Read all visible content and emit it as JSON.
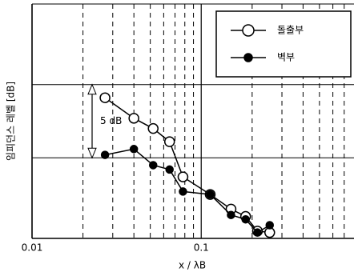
{
  "chart_data": {
    "type": "line",
    "x_label": "x / λB",
    "y_label": "임피던스 레벨 [dB]",
    "annotation": "5 dB",
    "annotation_span": [
      5.5,
      10.5
    ],
    "xscale": "log",
    "xlim": [
      0.01,
      0.8
    ],
    "xticks": [
      0.01,
      0.1
    ],
    "x_minor_grid": [
      0.02,
      0.03,
      0.04,
      0.05,
      0.06,
      0.07,
      0.08,
      0.09,
      0.2,
      0.3,
      0.4,
      0.5,
      0.6,
      0.7
    ],
    "ylim": [
      0,
      16
    ],
    "y_grid": [
      5.5,
      10.5
    ],
    "legend": "upper right",
    "series": [
      {
        "name": "돌출부",
        "color": "#000000",
        "marker": "open",
        "x": [
          0.027,
          0.04,
          0.052,
          0.065,
          0.078,
          0.113,
          0.15,
          0.183,
          0.215,
          0.254
        ],
        "values": [
          9.6,
          8.2,
          7.5,
          6.6,
          4.2,
          3.0,
          2.0,
          1.5,
          0.5,
          0.4
        ]
      },
      {
        "name": "벽부",
        "color": "#000000",
        "marker": "filled",
        "x": [
          0.027,
          0.04,
          0.052,
          0.065,
          0.078,
          0.113,
          0.15,
          0.183,
          0.215,
          0.254
        ],
        "values": [
          5.7,
          6.1,
          5.0,
          4.7,
          3.2,
          3.0,
          1.6,
          1.3,
          0.4,
          0.9
        ]
      }
    ]
  }
}
